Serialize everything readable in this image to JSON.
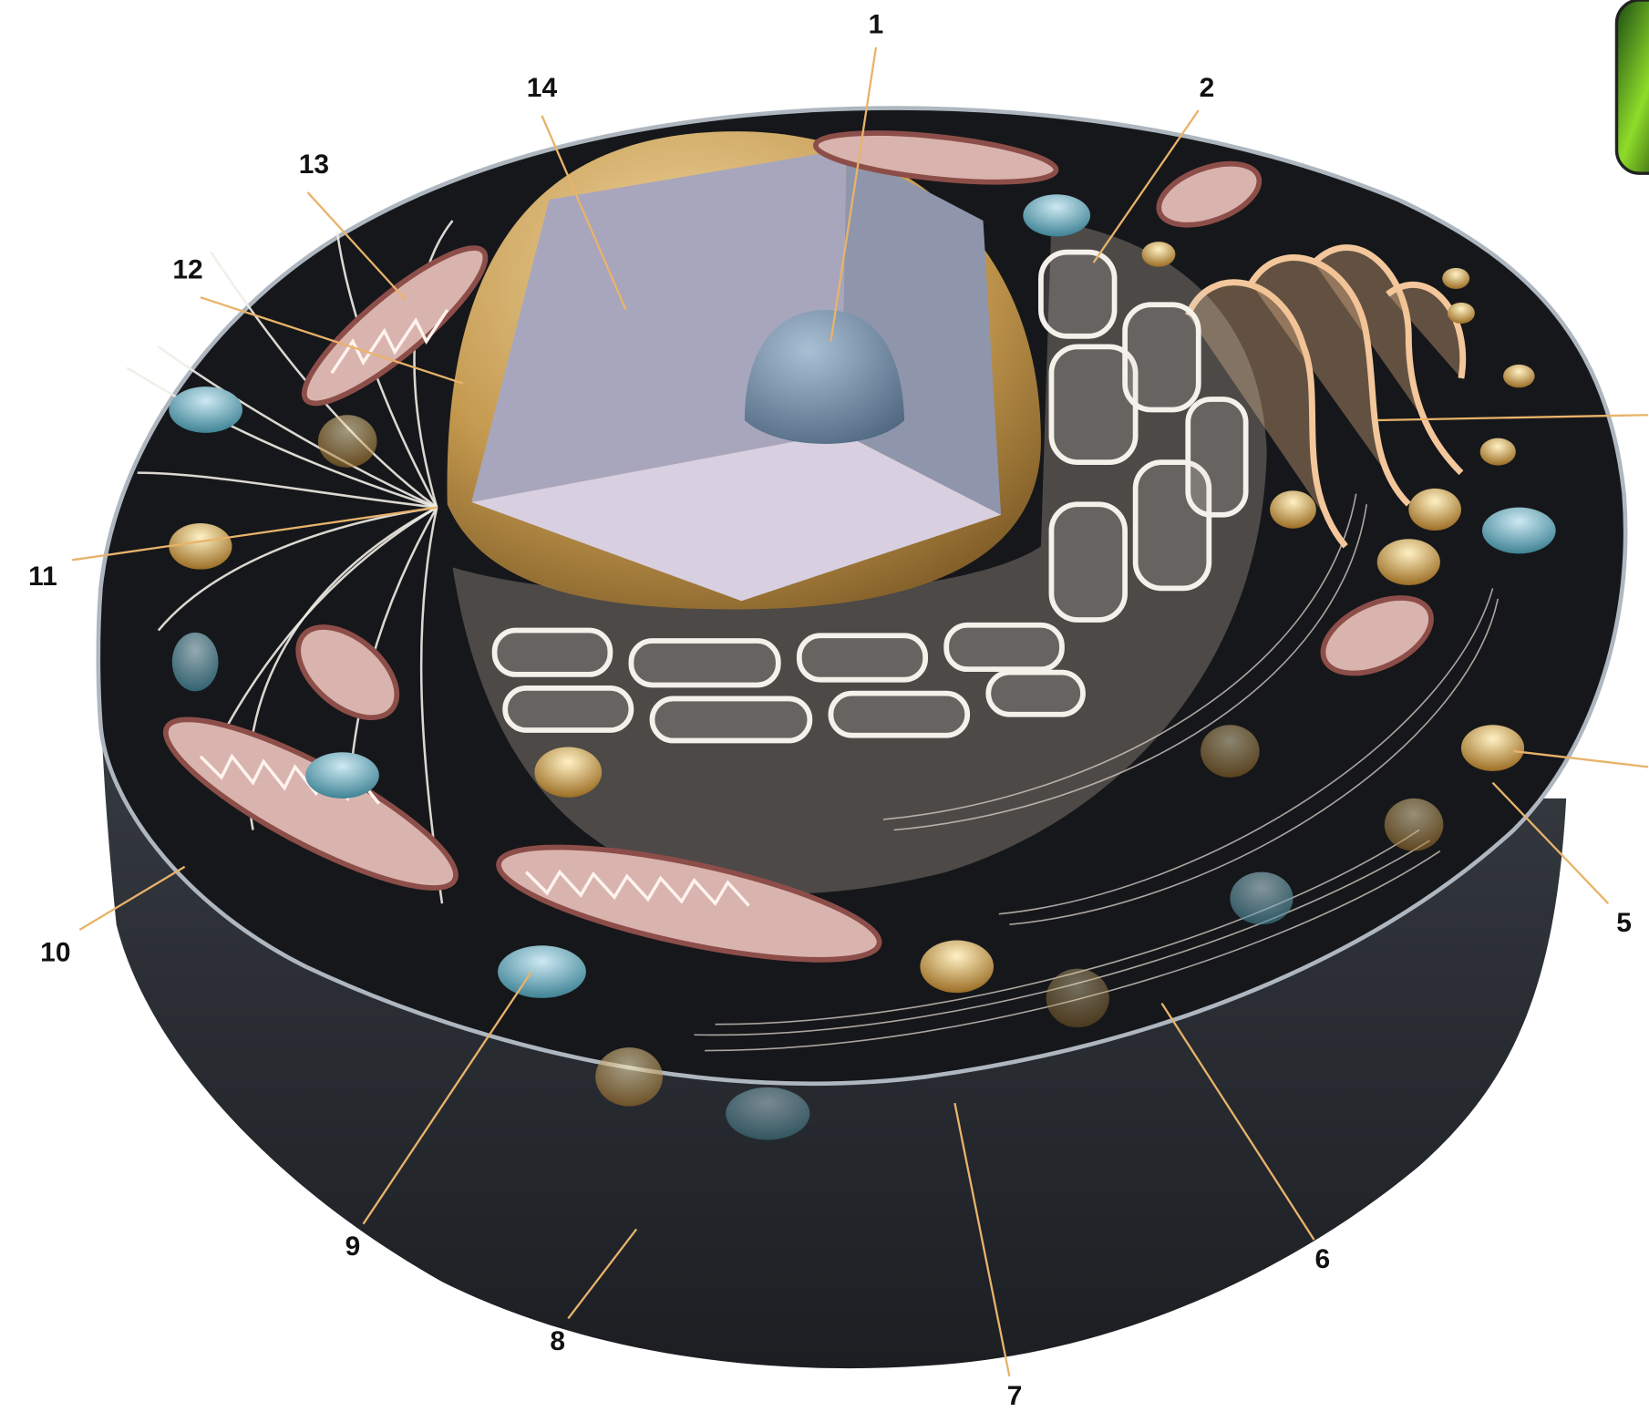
{
  "labels": [
    "1",
    "14",
    "2",
    "13",
    "12",
    "11",
    "10",
    "9",
    "8",
    "7",
    "6",
    "5"
  ]
}
